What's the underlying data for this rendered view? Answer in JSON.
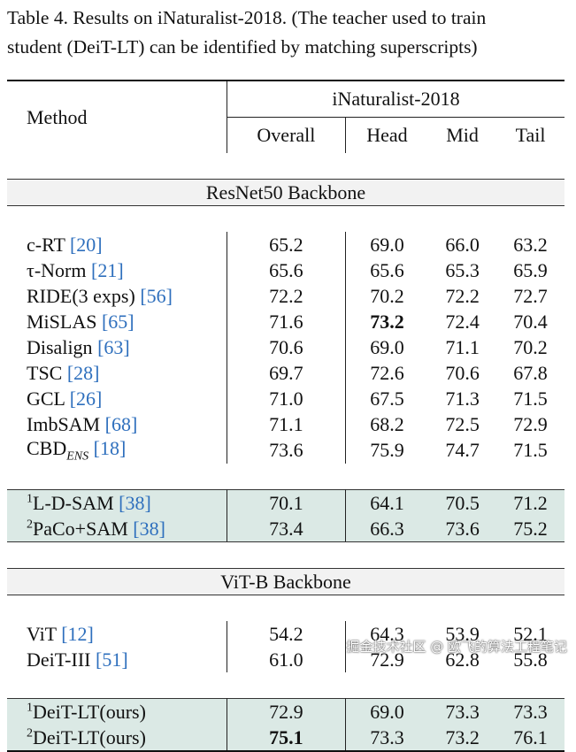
{
  "caption": {
    "line1": "Table 4.  Results on iNaturalist-2018.  (The teacher used to train",
    "line2": "student (DeiT-LT) can be identified by matching superscripts)"
  },
  "header": {
    "method": "Method",
    "dataset": "iNaturalist-2018",
    "cols": [
      "Overall",
      "Head",
      "Mid",
      "Tail"
    ]
  },
  "sections": [
    {
      "title": "ResNet50 Backbone",
      "rows": [
        {
          "sup": "",
          "name": "c-RT ",
          "sub": "",
          "ref": "[20]",
          "values": [
            "65.2",
            "69.0",
            "66.0",
            "63.2"
          ]
        },
        {
          "sup": "",
          "name": "τ-Norm ",
          "sub": "",
          "ref": "[21]",
          "values": [
            "65.6",
            "65.6",
            "65.3",
            "65.9"
          ]
        },
        {
          "sup": "",
          "name": "RIDE(3 exps) ",
          "sub": "",
          "ref": "[56]",
          "values": [
            "72.2",
            "70.2",
            "72.2",
            "72.7"
          ]
        },
        {
          "sup": "",
          "name": "MiSLAS ",
          "sub": "",
          "ref": "[65]",
          "values": [
            "71.6",
            "73.2",
            "72.4",
            "70.4"
          ],
          "bold": [
            1
          ]
        },
        {
          "sup": "",
          "name": "Disalign ",
          "sub": "",
          "ref": "[63]",
          "values": [
            "70.6",
            "69.0",
            "71.1",
            "70.2"
          ]
        },
        {
          "sup": "",
          "name": "TSC ",
          "sub": "",
          "ref": "[28]",
          "values": [
            "69.7",
            "72.6",
            "70.6",
            "67.8"
          ]
        },
        {
          "sup": "",
          "name": "GCL ",
          "sub": "",
          "ref": "[26]",
          "values": [
            "71.0",
            "67.5",
            "71.3",
            "71.5"
          ]
        },
        {
          "sup": "",
          "name": "ImbSAM ",
          "sub": "",
          "ref": "[68]",
          "values": [
            "71.1",
            "68.2",
            "72.5",
            "72.9"
          ]
        },
        {
          "sup": "",
          "name": "CBD",
          "sub": "ENS",
          "ref": "[18]",
          "values": [
            "73.6",
            "75.9",
            "74.7",
            "71.5"
          ]
        }
      ],
      "highlight": [
        {
          "sup": "1",
          "name": "L-D-SAM ",
          "sub": "",
          "ref": "[38]",
          "values": [
            "70.1",
            "64.1",
            "70.5",
            "71.2"
          ]
        },
        {
          "sup": "2",
          "name": "PaCo+SAM ",
          "sub": "",
          "ref": "[38]",
          "values": [
            "73.4",
            "66.3",
            "73.6",
            "75.2"
          ]
        }
      ]
    },
    {
      "title": "ViT-B Backbone",
      "rows": [
        {
          "sup": "",
          "name": "ViT  ",
          "sub": "",
          "ref": "[12]",
          "values": [
            "54.2",
            "64.3",
            "53.9",
            "52.1"
          ]
        },
        {
          "sup": "",
          "name": "DeiT-III  ",
          "sub": "",
          "ref": "[51]",
          "values": [
            "61.0",
            "72.9",
            "62.8",
            "55.8"
          ]
        }
      ],
      "highlight": [
        {
          "sup": "1",
          "name": "DeiT-LT(ours)",
          "sub": "",
          "ref": "",
          "values": [
            "72.9",
            "69.0",
            "73.3",
            "73.3"
          ]
        },
        {
          "sup": "2",
          "name": "DeiT-LT(ours)",
          "sub": "",
          "ref": "",
          "values": [
            "75.1",
            "73.3",
            "73.2",
            "76.1"
          ],
          "bold": [
            0
          ]
        }
      ]
    }
  ],
  "watermark": "掘金技术社区 @ 欧飞的算法工程笔记"
}
